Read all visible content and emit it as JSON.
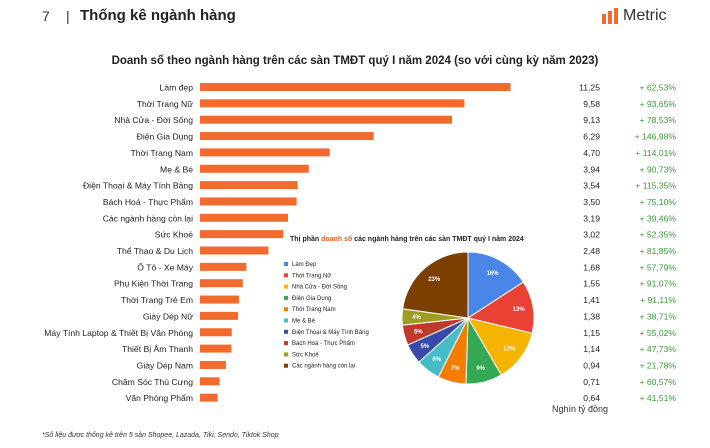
{
  "header": {
    "page_number": "7",
    "separator": "|",
    "section_title": "Thống kê ngành hàng",
    "brand": "Metric"
  },
  "chart_data": [
    {
      "type": "bar",
      "orientation": "horizontal",
      "title": "Doanh số theo ngành hàng trên các sàn TMĐT quý I năm 2024 (so với cùng kỳ năm 2023)",
      "categories": [
        "Làm đẹp",
        "Thời Trang Nữ",
        "Nhà Cửa - Đời Sống",
        "Điện Gia Dụng",
        "Thời Trang Nam",
        "Mẹ & Bé",
        "Điện Thoại & Máy Tính Bảng",
        "Bách Hoá - Thực Phẩm",
        "Các ngành hàng còn lại",
        "Sức Khoẻ",
        "Thể Thao & Du Lịch",
        "Ô Tô - Xe Máy",
        "Phụ Kiện Thời Trang",
        "Thời Trang Trẻ Em",
        "Giày Dép Nữ",
        "Máy Tính Laptop & Thiết Bị Văn Phòng",
        "Thiết Bị Âm Thanh",
        "Giày Dép Nam",
        "Chăm Sóc Thú Cưng",
        "Văn Phòng Phẩm"
      ],
      "values": [
        11.25,
        9.58,
        9.13,
        6.29,
        4.7,
        3.94,
        3.54,
        3.5,
        3.19,
        3.02,
        2.48,
        1.68,
        1.55,
        1.41,
        1.38,
        1.15,
        1.14,
        0.94,
        0.71,
        0.64
      ],
      "value_labels": [
        "11,25",
        "9,58",
        "9,13",
        "6,29",
        "4,70",
        "3,94",
        "3,54",
        "3,50",
        "3,19",
        "3,02",
        "2,48",
        "1,68",
        "1,55",
        "1,41",
        "1,38",
        "1,15",
        "1,14",
        "0,94",
        "0,71",
        "0,64"
      ],
      "growth_labels": [
        "+ 62,53%",
        "+ 93,65%",
        "+ 78,53%",
        "+ 146,98%",
        "+ 114,01%",
        "+ 90,73%",
        "+ 115,35%",
        "+ 75,10%",
        "+ 39,46%",
        "+ 52,35%",
        "+ 81,85%",
        "+ 57,79%",
        "+ 91,07%",
        "+ 91,11%",
        "+ 38,71%",
        "+ 55,02%",
        "+ 47,73%",
        "+ 21,78%",
        "+ 60,57%",
        "+ 41,51%"
      ],
      "unit": "Nghìn tỷ đồng",
      "bar_color": "#f26a2e",
      "growth_color": "#3a9a3a",
      "xlim": [
        0,
        12.5
      ]
    },
    {
      "type": "pie",
      "title_prefix": "Thị phần ",
      "title_highlight": "doanh số",
      "title_suffix": " các ngành hàng trên các sàn TMĐT quý I năm 2024",
      "labels": [
        "Làm Đẹp",
        "Thời Trang Nữ",
        "Nhà Cửa - Đời Sống",
        "Điện Gia Dụng",
        "Thời Trang Nam",
        "Mẹ & Bé",
        "Điện Thoại & Máy Tính Bảng",
        "Bách Hoá - Thực Phẩm",
        "Sức Khoẻ",
        "Các ngành hàng còn lại"
      ],
      "values": [
        16,
        13,
        13,
        9,
        7,
        6,
        5,
        5,
        4,
        23
      ],
      "value_labels": [
        "16%",
        "13%",
        "13%",
        "9%",
        "7%",
        "6%",
        "5%",
        "5%",
        "4%",
        "23%"
      ],
      "colors": [
        "#4a86e8",
        "#e94235",
        "#f4b400",
        "#34a853",
        "#f57c00",
        "#46bdc6",
        "#3949ab",
        "#c0392b",
        "#9e9d24",
        "#7b3f00"
      ]
    }
  ],
  "footnote": "*Số liệu được thống kê trên 5 sàn Shopee, Lazada, Tiki, Sendo, Tiktok Shop"
}
